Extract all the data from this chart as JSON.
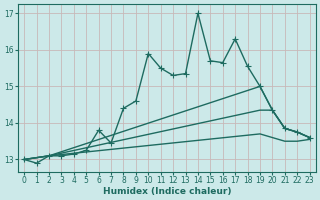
{
  "xlabel": "Humidex (Indice chaleur)",
  "xlim": [
    -0.5,
    23.5
  ],
  "ylim": [
    12.65,
    17.25
  ],
  "yticks": [
    13,
    14,
    15,
    16,
    17
  ],
  "xticks": [
    0,
    1,
    2,
    3,
    4,
    5,
    6,
    7,
    8,
    9,
    10,
    11,
    12,
    13,
    14,
    15,
    16,
    17,
    18,
    19,
    20,
    21,
    22,
    23
  ],
  "bg_color": "#cce9e9",
  "grid_color": "#c8b8b8",
  "line_color": "#1e6b60",
  "lines": [
    {
      "x": [
        0,
        1,
        2,
        3,
        4,
        5,
        6,
        7,
        8,
        9,
        10,
        11,
        12,
        13,
        14,
        15,
        16,
        17,
        18,
        19,
        20,
        21,
        22,
        23
      ],
      "y": [
        13.0,
        12.9,
        13.1,
        13.1,
        13.15,
        13.25,
        13.8,
        13.45,
        14.4,
        14.6,
        15.9,
        15.5,
        15.3,
        15.35,
        17.0,
        15.7,
        15.65,
        16.3,
        15.55,
        15.0,
        14.35,
        13.85,
        13.75,
        13.6
      ],
      "marker": "+",
      "ms": 4,
      "lw": 1.0
    },
    {
      "x": [
        0,
        2,
        19,
        20,
        21,
        22,
        23
      ],
      "y": [
        13.0,
        13.1,
        15.0,
        14.35,
        13.85,
        13.75,
        13.6
      ],
      "marker": "",
      "ms": 0,
      "lw": 1.0
    },
    {
      "x": [
        0,
        2,
        19,
        20,
        21,
        22,
        23
      ],
      "y": [
        13.0,
        13.1,
        14.35,
        14.35,
        13.85,
        13.75,
        13.6
      ],
      "marker": "",
      "ms": 0,
      "lw": 1.0
    },
    {
      "x": [
        0,
        2,
        19,
        20,
        21,
        22,
        23
      ],
      "y": [
        13.0,
        13.1,
        13.7,
        13.6,
        13.5,
        13.5,
        13.55
      ],
      "marker": "",
      "ms": 0,
      "lw": 1.0
    }
  ]
}
